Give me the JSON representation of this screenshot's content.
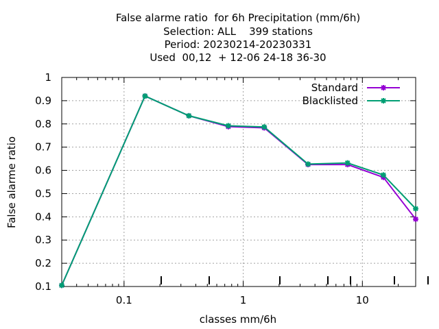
{
  "chart_data": {
    "type": "line",
    "title_lines": [
      "False alarme ratio  for 6h Precipitation (mm/6h)",
      "Selection: ALL    399 stations",
      "Period: 20230214-20230331",
      "Used  00,12  + 12-06 24-18 36-30"
    ],
    "xlabel": "classes mm/6h",
    "ylabel": "False alarme ratio",
    "x_scale": "log",
    "xlim": [
      0.03,
      28
    ],
    "ylim": [
      0.1,
      1.0
    ],
    "x_ticks": [
      0.1,
      1,
      10
    ],
    "x_tick_labels": [
      "0.1",
      "1",
      "10"
    ],
    "y_ticks": [
      0.1,
      0.2,
      0.3,
      0.4,
      0.5,
      0.6,
      0.7,
      0.8,
      0.9,
      1.0
    ],
    "y_tick_labels": [
      "0.1",
      "0.2",
      "0.3",
      "0.4",
      "0.5",
      "0.6",
      "0.7",
      "0.8",
      "0.9",
      "1"
    ],
    "grid": true,
    "legend_position": "top-right",
    "x": [
      0.03,
      0.15,
      0.35,
      0.75,
      1.5,
      3.5,
      7.5,
      15,
      28
    ],
    "series": [
      {
        "name": "Standard",
        "color": "#9400D3",
        "values": [
          0.105,
          0.92,
          0.835,
          0.788,
          0.783,
          0.625,
          0.625,
          0.57,
          0.39
        ]
      },
      {
        "name": "Blacklisted",
        "color": "#009E73",
        "values": [
          0.105,
          0.92,
          0.835,
          0.792,
          0.787,
          0.627,
          0.632,
          0.58,
          0.435
        ]
      }
    ]
  }
}
